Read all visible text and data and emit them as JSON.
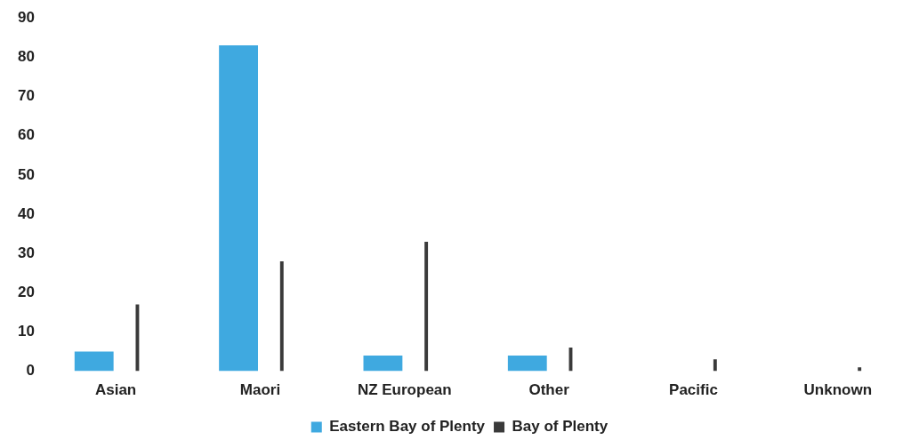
{
  "chart_data": {
    "type": "bar",
    "categories": [
      "Asian",
      "Maori",
      "NZ European",
      "Other",
      "Pacific",
      "Unknown"
    ],
    "series": [
      {
        "name": "Eastern Bay of Plenty",
        "color": "#3fa9e0",
        "values": [
          5,
          83,
          4,
          4,
          0,
          0
        ]
      },
      {
        "name": "Bay of Plenty",
        "color": "#3a3a3a",
        "values": [
          17,
          28,
          33,
          6,
          3,
          1
        ]
      }
    ],
    "ylim": [
      0,
      90
    ],
    "yticks": [
      0,
      10,
      20,
      30,
      40,
      50,
      60,
      70,
      80,
      90
    ],
    "grid": false,
    "legend": "bottom"
  }
}
